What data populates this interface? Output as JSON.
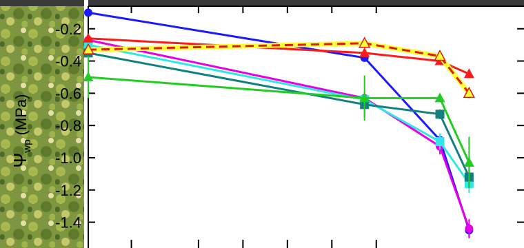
{
  "chart_data": {
    "type": "line",
    "ylabel": {
      "symbol": "Ψ",
      "subscript": "wp",
      "unit": " (MPa)"
    },
    "ylim": [
      -1.56,
      -0.06
    ],
    "xlim": [
      0,
      100
    ],
    "yticks": [
      {
        "value": -0.2,
        "label": "-0.2"
      },
      {
        "value": -0.4,
        "label": "-0.4"
      },
      {
        "value": -0.6,
        "label": "-0.6"
      },
      {
        "value": -0.8,
        "label": "-0.8"
      },
      {
        "value": -1.0,
        "label": "-1.0"
      },
      {
        "value": -1.2,
        "label": "-1.2"
      },
      {
        "value": -1.4,
        "label": "-1.4"
      }
    ],
    "xtick_positions": [
      9.9,
      25.3,
      35.5,
      45.7,
      55.9,
      66.1
    ],
    "x": [
      0,
      63.4,
      80.7,
      87.4
    ],
    "series": [
      {
        "color": "#1a1aff",
        "marker": "circle",
        "dash": false,
        "values": [
          -0.1,
          -0.38,
          -0.89,
          -1.45
        ],
        "errors": [
          0,
          0.02,
          0.04,
          0.04
        ]
      },
      {
        "color": "#e600e6",
        "marker": "circle",
        "dash": false,
        "values": [
          -0.27,
          -0.63,
          -0.93,
          -1.44
        ],
        "errors": [
          0.03,
          0.03,
          0.05,
          0.06
        ]
      },
      {
        "color": "#33e6e6",
        "marker": "square",
        "dash": false,
        "values": [
          -0.3,
          -0.64,
          -0.9,
          -1.16
        ],
        "errors": [
          0,
          0.04,
          0.05,
          0.06
        ]
      },
      {
        "color": "#138080",
        "marker": "square",
        "dash": false,
        "values": [
          -0.35,
          -0.67,
          -0.73,
          -1.12
        ],
        "errors": [
          0.03,
          0.08,
          0.03,
          0.06
        ]
      },
      {
        "color": "#22cc22",
        "marker": "triangle",
        "dash": false,
        "values": [
          -0.5,
          -0.63,
          -0.63,
          -1.03
        ],
        "errors": [
          0.13,
          0.14,
          0.02,
          0.16
        ]
      },
      {
        "color": "#ff1a1a",
        "marker": "triangle",
        "dash": false,
        "values": [
          -0.26,
          -0.35,
          -0.4,
          -0.48
        ],
        "errors": [
          0.02,
          0.02,
          0.02,
          0.02
        ]
      },
      {
        "color": "#dd1a1a",
        "highlight": "#ffff33",
        "marker": "triangle-open-yellow",
        "dash": true,
        "values": [
          -0.33,
          -0.29,
          -0.37,
          -0.6
        ],
        "errors": [
          0,
          0.01,
          0.02,
          0.03
        ]
      }
    ]
  }
}
